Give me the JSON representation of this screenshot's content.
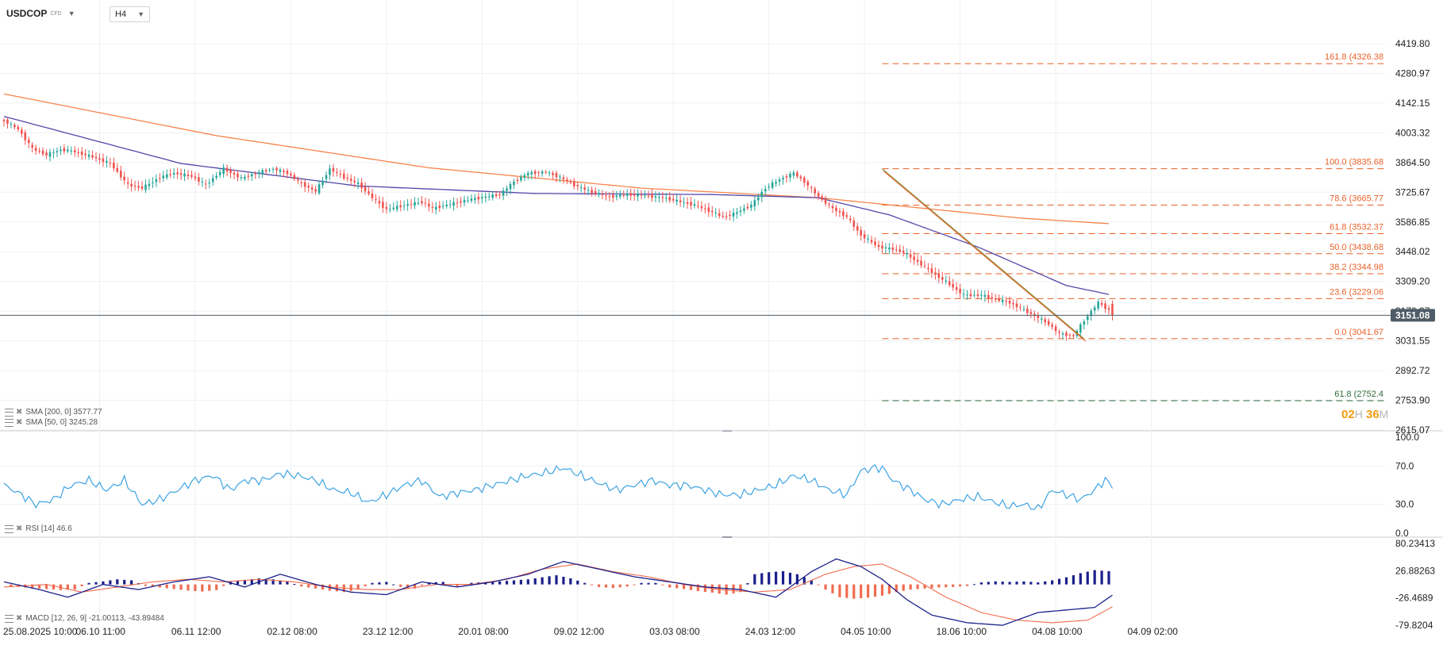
{
  "header": {
    "symbol": "USDCOP",
    "instrument_type": "CFD",
    "timeframe": "H4"
  },
  "countdown": {
    "hours": "02",
    "hours_unit": "H",
    "minutes": "36",
    "minutes_unit": "M"
  },
  "colors": {
    "bull": "#26a69a",
    "bear": "#ef5350",
    "sma200": "#f7844b",
    "sma50": "#5147a8",
    "fib": "#e8622a",
    "fib_ext": "#2e6b3a",
    "rsi": "#3ea3e3",
    "macd": "#1b1f8a",
    "signal": "#ef6c50",
    "hist_pos": "#1b1f8a",
    "hist_neg": "#ef6c50",
    "price_tag": "#4f5b66"
  },
  "indicators": {
    "sma200_label": "SMA [200, 0] 3577.77",
    "sma50_label": "SMA [50, 0] 3245.28",
    "rsi_label": "RSI [14] 46.6",
    "macd_label": "MACD [12, 26, 9] -21.00113, -43.89484"
  },
  "chart_data": [
    {
      "type": "candlestick",
      "title": "USDCOP",
      "timeframe": "H4",
      "x_ticks": [
        "25.08.2025 10:00",
        "06.10 11:00",
        "06.11 12:00",
        "02.12 08:00",
        "23.12 12:00",
        "20.01 08:00",
        "09.02 12:00",
        "03.03 08:00",
        "24.03 12:00",
        "04.05 10:00",
        "18.06 10:00",
        "04.08 10:00",
        "04.09 02:00"
      ],
      "y_ticks": [
        "4419.80",
        "4280.97",
        "4142.15",
        "4003.32",
        "3864.50",
        "3725.67",
        "3586.85",
        "3448.02",
        "3309.20",
        "3170.37",
        "3031.55",
        "2892.72",
        "2753.90",
        "2615.07"
      ],
      "ylim": [
        2615.07,
        4419.8
      ],
      "current_price": "3151.08",
      "price_path": [
        [
          0,
          4060
        ],
        [
          4,
          4020
        ],
        [
          8,
          3930
        ],
        [
          12,
          3900
        ],
        [
          16,
          3925
        ],
        [
          20,
          3915
        ],
        [
          25,
          3890
        ],
        [
          30,
          3860
        ],
        [
          35,
          3760
        ],
        [
          39,
          3745
        ],
        [
          44,
          3795
        ],
        [
          48,
          3815
        ],
        [
          53,
          3800
        ],
        [
          57,
          3760
        ],
        [
          62,
          3835
        ],
        [
          67,
          3790
        ],
        [
          71,
          3815
        ],
        [
          76,
          3835
        ],
        [
          80,
          3815
        ],
        [
          84,
          3765
        ],
        [
          88,
          3730
        ],
        [
          92,
          3835
        ],
        [
          96,
          3795
        ],
        [
          100,
          3765
        ],
        [
          104,
          3700
        ],
        [
          108,
          3645
        ],
        [
          113,
          3665
        ],
        [
          118,
          3680
        ],
        [
          121,
          3650
        ],
        [
          126,
          3670
        ],
        [
          131,
          3690
        ],
        [
          136,
          3705
        ],
        [
          140,
          3715
        ],
        [
          144,
          3775
        ],
        [
          148,
          3815
        ],
        [
          153,
          3820
        ],
        [
          157,
          3795
        ],
        [
          161,
          3760
        ],
        [
          166,
          3725
        ],
        [
          171,
          3705
        ],
        [
          176,
          3715
        ],
        [
          181,
          3710
        ],
        [
          186,
          3700
        ],
        [
          190,
          3685
        ],
        [
          195,
          3665
        ],
        [
          199,
          3640
        ],
        [
          203,
          3610
        ],
        [
          206,
          3625
        ],
        [
          211,
          3665
        ],
        [
          215,
          3745
        ],
        [
          219,
          3785
        ],
        [
          223,
          3815
        ],
        [
          226,
          3775
        ],
        [
          230,
          3705
        ],
        [
          234,
          3650
        ],
        [
          238,
          3610
        ],
        [
          242,
          3525
        ],
        [
          247,
          3470
        ],
        [
          251,
          3460
        ],
        [
          254,
          3445
        ],
        [
          258,
          3400
        ],
        [
          263,
          3340
        ],
        [
          267,
          3295
        ],
        [
          271,
          3245
        ],
        [
          276,
          3245
        ],
        [
          280,
          3225
        ],
        [
          284,
          3210
        ],
        [
          288,
          3175
        ],
        [
          292,
          3140
        ],
        [
          295,
          3110
        ],
        [
          298,
          3065
        ],
        [
          302,
          3055
        ],
        [
          306,
          3150
        ],
        [
          309,
          3210
        ],
        [
          312,
          3175
        ],
        [
          313,
          3151
        ]
      ],
      "sma200": [
        [
          0,
          4185
        ],
        [
          60,
          3990
        ],
        [
          120,
          3840
        ],
        [
          180,
          3745
        ],
        [
          230,
          3700
        ],
        [
          260,
          3650
        ],
        [
          287,
          3605
        ],
        [
          313,
          3578
        ]
      ],
      "sma50": [
        [
          0,
          4080
        ],
        [
          50,
          3860
        ],
        [
          100,
          3755
        ],
        [
          150,
          3720
        ],
        [
          200,
          3715
        ],
        [
          230,
          3700
        ],
        [
          250,
          3620
        ],
        [
          275,
          3470
        ],
        [
          300,
          3290
        ],
        [
          313,
          3245
        ]
      ],
      "fibonacci": [
        {
          "label": "161.8 (4326.38",
          "value": 4326.38
        },
        {
          "label": "100.0 (3835.68",
          "value": 3835.68
        },
        {
          "label": "78.6 (3665.77",
          "value": 3665.77
        },
        {
          "label": "61.8 (3532.37",
          "value": 3532.37
        },
        {
          "label": "50.0 (3438.68",
          "value": 3438.68
        },
        {
          "label": "38.2 (3344.98",
          "value": 3344.98
        },
        {
          "label": "23.6 (3229.06",
          "value": 3229.06
        },
        {
          "label": "0.0 (3041.67",
          "value": 3041.67
        },
        {
          "label": "61.8 (2752.4",
          "value": 2752.4,
          "extension": true
        }
      ],
      "trendline": [
        [
          248,
          3835
        ],
        [
          305,
          3041
        ]
      ],
      "fib_start_index": 248
    },
    {
      "type": "line",
      "title": "RSI",
      "y_ticks": [
        "100.0",
        "70.0",
        "30.0",
        "0.0"
      ],
      "ylim": [
        0,
        100
      ],
      "values": [
        [
          0,
          50
        ],
        [
          5,
          40
        ],
        [
          9,
          30
        ],
        [
          14,
          35
        ],
        [
          19,
          50
        ],
        [
          24,
          55
        ],
        [
          29,
          45
        ],
        [
          34,
          55
        ],
        [
          39,
          30
        ],
        [
          44,
          35
        ],
        [
          49,
          45
        ],
        [
          54,
          55
        ],
        [
          59,
          60
        ],
        [
          64,
          45
        ],
        [
          68,
          55
        ],
        [
          73,
          55
        ],
        [
          78,
          62
        ],
        [
          83,
          60
        ],
        [
          88,
          55
        ],
        [
          93,
          45
        ],
        [
          98,
          42
        ],
        [
          103,
          32
        ],
        [
          108,
          40
        ],
        [
          113,
          50
        ],
        [
          118,
          55
        ],
        [
          123,
          38
        ],
        [
          128,
          42
        ],
        [
          133,
          45
        ],
        [
          138,
          50
        ],
        [
          143,
          55
        ],
        [
          148,
          60
        ],
        [
          153,
          63
        ],
        [
          158,
          68
        ],
        [
          163,
          60
        ],
        [
          168,
          52
        ],
        [
          173,
          45
        ],
        [
          178,
          50
        ],
        [
          183,
          55
        ],
        [
          188,
          50
        ],
        [
          193,
          50
        ],
        [
          198,
          45
        ],
        [
          203,
          40
        ],
        [
          208,
          40
        ],
        [
          213,
          45
        ],
        [
          218,
          50
        ],
        [
          223,
          60
        ],
        [
          228,
          55
        ],
        [
          233,
          45
        ],
        [
          238,
          40
        ],
        [
          242,
          65
        ],
        [
          246,
          68
        ],
        [
          248,
          68
        ],
        [
          251,
          55
        ],
        [
          256,
          45
        ],
        [
          260,
          35
        ],
        [
          265,
          30
        ],
        [
          270,
          35
        ],
        [
          275,
          38
        ],
        [
          280,
          32
        ],
        [
          284,
          28
        ],
        [
          288,
          30
        ],
        [
          292,
          25
        ],
        [
          296,
          45
        ],
        [
          300,
          40
        ],
        [
          304,
          35
        ],
        [
          308,
          45
        ],
        [
          311,
          56
        ],
        [
          313,
          46.6
        ]
      ]
    },
    {
      "type": "line",
      "title": "MACD",
      "y_ticks": [
        "80.23413",
        "26.88263",
        "-26.4689",
        "-79.8204"
      ],
      "ylim": [
        -79.8204,
        80.23413
      ],
      "macd": [
        [
          0,
          5
        ],
        [
          10,
          -10
        ],
        [
          18,
          -25
        ],
        [
          28,
          0
        ],
        [
          38,
          -10
        ],
        [
          48,
          5
        ],
        [
          58,
          15
        ],
        [
          68,
          -5
        ],
        [
          78,
          20
        ],
        [
          88,
          0
        ],
        [
          98,
          -15
        ],
        [
          108,
          -20
        ],
        [
          118,
          5
        ],
        [
          128,
          -5
        ],
        [
          138,
          5
        ],
        [
          148,
          20
        ],
        [
          158,
          45
        ],
        [
          168,
          30
        ],
        [
          178,
          15
        ],
        [
          188,
          5
        ],
        [
          198,
          -5
        ],
        [
          208,
          -10
        ],
        [
          218,
          -25
        ],
        [
          228,
          25
        ],
        [
          235,
          50
        ],
        [
          242,
          35
        ],
        [
          248,
          10
        ],
        [
          255,
          -30
        ],
        [
          262,
          -60
        ],
        [
          272,
          -75
        ],
        [
          282,
          -80
        ],
        [
          292,
          -55
        ],
        [
          300,
          -50
        ],
        [
          308,
          -45
        ],
        [
          313,
          -21
        ]
      ],
      "signal": [
        [
          0,
          -5
        ],
        [
          12,
          0
        ],
        [
          22,
          -15
        ],
        [
          32,
          -5
        ],
        [
          42,
          5
        ],
        [
          52,
          10
        ],
        [
          62,
          5
        ],
        [
          72,
          10
        ],
        [
          82,
          5
        ],
        [
          92,
          -5
        ],
        [
          102,
          -10
        ],
        [
          112,
          -10
        ],
        [
          122,
          0
        ],
        [
          132,
          0
        ],
        [
          142,
          10
        ],
        [
          152,
          30
        ],
        [
          162,
          40
        ],
        [
          172,
          25
        ],
        [
          182,
          15
        ],
        [
          192,
          0
        ],
        [
          202,
          -10
        ],
        [
          212,
          -15
        ],
        [
          222,
          -10
        ],
        [
          232,
          20
        ],
        [
          240,
          35
        ],
        [
          248,
          40
        ],
        [
          256,
          15
        ],
        [
          266,
          -25
        ],
        [
          276,
          -55
        ],
        [
          286,
          -70
        ],
        [
          296,
          -75
        ],
        [
          306,
          -70
        ],
        [
          313,
          -44
        ]
      ],
      "histogram": [
        [
          4,
          -5
        ],
        [
          8,
          -7
        ],
        [
          12,
          -9
        ],
        [
          16,
          -11
        ],
        [
          20,
          -10
        ],
        [
          24,
          3
        ],
        [
          28,
          6
        ],
        [
          32,
          10
        ],
        [
          36,
          8
        ],
        [
          40,
          -3
        ],
        [
          44,
          -6
        ],
        [
          48,
          -9
        ],
        [
          52,
          -12
        ],
        [
          56,
          -14
        ],
        [
          60,
          -11
        ],
        [
          64,
          5
        ],
        [
          68,
          9
        ],
        [
          72,
          12
        ],
        [
          76,
          10
        ],
        [
          80,
          6
        ],
        [
          84,
          -4
        ],
        [
          88,
          -8
        ],
        [
          92,
          -12
        ],
        [
          96,
          -15
        ],
        [
          100,
          -10
        ],
        [
          104,
          3
        ],
        [
          108,
          5
        ],
        [
          112,
          -5
        ],
        [
          116,
          -8
        ],
        [
          120,
          4
        ],
        [
          124,
          5
        ],
        [
          128,
          -4
        ],
        [
          132,
          3
        ],
        [
          136,
          5
        ],
        [
          140,
          6
        ],
        [
          144,
          8
        ],
        [
          148,
          10
        ],
        [
          152,
          14
        ],
        [
          156,
          18
        ],
        [
          160,
          12
        ],
        [
          164,
          3
        ],
        [
          168,
          -5
        ],
        [
          172,
          -7
        ],
        [
          176,
          -4
        ],
        [
          180,
          3
        ],
        [
          184,
          3
        ],
        [
          188,
          -6
        ],
        [
          192,
          -9
        ],
        [
          196,
          -13
        ],
        [
          200,
          -16
        ],
        [
          204,
          -20
        ],
        [
          208,
          -15
        ],
        [
          212,
          20
        ],
        [
          216,
          24
        ],
        [
          220,
          26
        ],
        [
          224,
          20
        ],
        [
          228,
          8
        ],
        [
          232,
          -10
        ],
        [
          236,
          -25
        ],
        [
          240,
          -28
        ],
        [
          244,
          -26
        ],
        [
          248,
          -22
        ],
        [
          252,
          -15
        ],
        [
          256,
          -10
        ],
        [
          260,
          -8
        ],
        [
          264,
          -6
        ],
        [
          268,
          -5
        ],
        [
          272,
          -3
        ],
        [
          276,
          4
        ],
        [
          280,
          6
        ],
        [
          284,
          5
        ],
        [
          288,
          6
        ],
        [
          292,
          4
        ],
        [
          296,
          8
        ],
        [
          300,
          14
        ],
        [
          304,
          22
        ],
        [
          308,
          28
        ],
        [
          312,
          26
        ]
      ]
    }
  ]
}
